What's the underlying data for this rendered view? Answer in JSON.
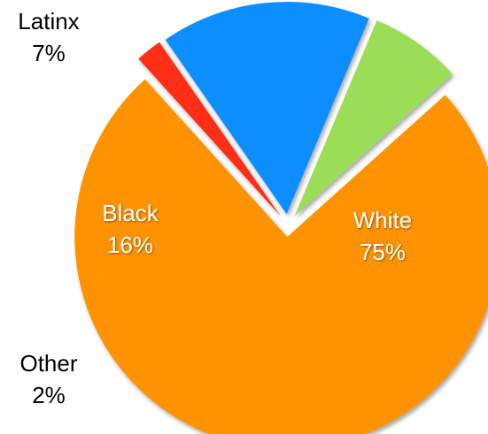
{
  "chart_data": {
    "type": "pie",
    "title": "",
    "slices": [
      {
        "label": "White",
        "value": 75,
        "value_label": "75%",
        "color": "#FF9200",
        "label_position": "inside"
      },
      {
        "label": "Other",
        "value": 2,
        "value_label": "2%",
        "color": "#FF2D12",
        "label_position": "outside"
      },
      {
        "label": "Black",
        "value": 16,
        "value_label": "16%",
        "color": "#0C8EFF",
        "label_position": "inside"
      },
      {
        "label": "Latinx",
        "value": 7,
        "value_label": "7%",
        "color": "#9CDD58",
        "label_position": "outside"
      }
    ],
    "exploded": true,
    "legend": "none"
  }
}
